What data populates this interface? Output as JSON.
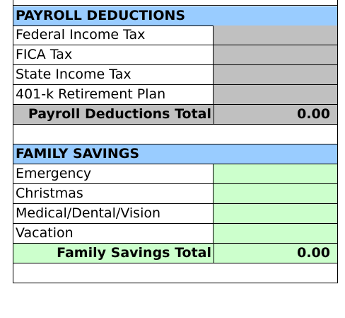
{
  "payroll": {
    "header": "PAYROLL DEDUCTIONS",
    "items": [
      {
        "label": "Federal Income Tax",
        "value": ""
      },
      {
        "label": "FICA Tax",
        "value": ""
      },
      {
        "label": "State Income Tax",
        "value": ""
      },
      {
        "label": "401-k Retirement Plan",
        "value": ""
      }
    ],
    "total_label": "Payroll Deductions Total",
    "total_value": "0.00"
  },
  "savings": {
    "header": "FAMILY SAVINGS",
    "items": [
      {
        "label": "Emergency",
        "value": ""
      },
      {
        "label": "Christmas",
        "value": ""
      },
      {
        "label": "Medical/Dental/Vision",
        "value": ""
      },
      {
        "label": "Vacation",
        "value": ""
      }
    ],
    "total_label": "Family Savings Total",
    "total_value": "0.00"
  },
  "colors": {
    "header_bg": "#99ccff",
    "payroll_value_bg": "#c0c0c0",
    "savings_value_bg": "#ccffcc"
  }
}
